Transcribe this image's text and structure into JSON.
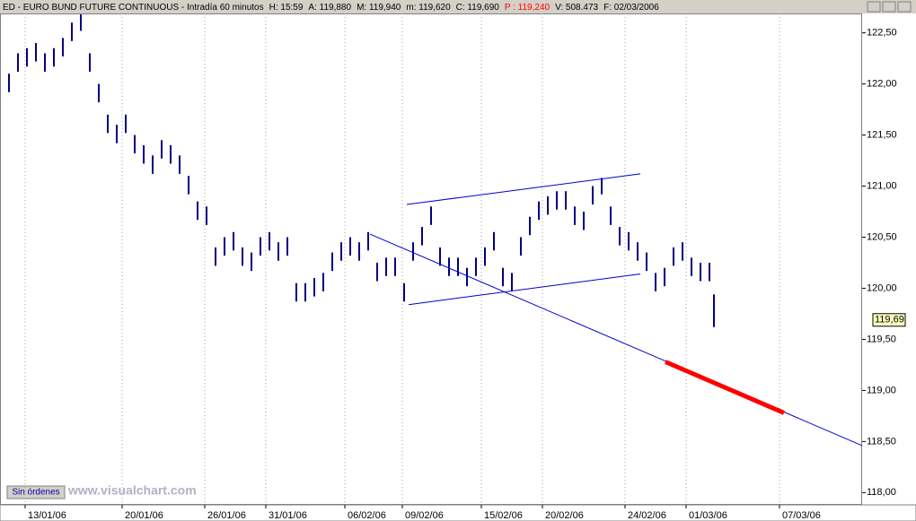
{
  "chart_data": {
    "type": "hilo",
    "title": "ED - EURO BUND FUTURE CONTINUOUS - Intradía 60 minutos",
    "header_fields": [
      {
        "text": "H: 15:59"
      },
      {
        "text": "A: 119,880"
      },
      {
        "text": "M: 119,940"
      },
      {
        "text": "m: 119,620"
      },
      {
        "text": "C: 119,690"
      },
      {
        "text": "P : 119,240",
        "color": "#ff0000"
      },
      {
        "text": "V: 508.473"
      },
      {
        "text": "F: 02/03/2006"
      }
    ],
    "color": "#000080",
    "x": [
      2.5,
      5,
      7.5,
      10,
      12.5,
      15,
      17.5,
      20,
      22.5,
      25,
      27.5,
      30,
      32.5,
      35,
      37.5,
      40,
      42.5,
      45,
      47.5,
      50,
      52.5,
      55,
      57.5,
      60,
      62.5,
      65,
      67.5,
      70,
      72.5,
      75,
      77.5,
      80,
      82.5,
      85,
      87.5,
      90,
      92.5,
      95,
      97.5,
      100,
      102.5,
      105,
      107.5,
      110,
      112.5,
      115,
      117.5,
      120,
      122.5,
      125,
      127.5,
      130,
      132.5,
      135,
      137.5,
      140,
      142.5,
      145,
      147.5,
      150,
      152.5,
      155,
      157.5,
      160,
      162.5,
      165,
      167.5,
      170,
      172.5,
      175,
      177.5,
      180,
      182.5,
      185,
      187.5,
      190,
      192.5,
      195,
      197.5,
      198.75
    ],
    "high": [
      122.1,
      122.3,
      122.35,
      122.4,
      122.3,
      122.35,
      122.45,
      122.6,
      122.68,
      122.3,
      122.0,
      121.7,
      121.6,
      121.7,
      121.5,
      121.4,
      121.3,
      121.45,
      121.4,
      121.3,
      121.1,
      120.85,
      120.8,
      120.4,
      120.5,
      120.55,
      120.4,
      120.35,
      120.5,
      120.55,
      120.45,
      120.5,
      120.05,
      120.05,
      120.1,
      120.15,
      120.35,
      120.45,
      120.5,
      120.45,
      120.55,
      120.25,
      120.3,
      120.3,
      120.05,
      120.45,
      120.6,
      120.8,
      120.4,
      120.3,
      120.3,
      120.2,
      120.3,
      120.4,
      120.55,
      120.2,
      120.15,
      120.5,
      120.7,
      120.85,
      120.9,
      120.95,
      120.95,
      120.8,
      120.75,
      121.0,
      121.08,
      120.8,
      120.6,
      120.55,
      120.45,
      120.35,
      120.15,
      120.2,
      120.4,
      120.45,
      120.3,
      120.25,
      120.25,
      119.94
    ],
    "low": [
      121.92,
      122.12,
      122.17,
      122.22,
      122.12,
      122.17,
      122.27,
      122.42,
      122.52,
      122.12,
      121.82,
      121.52,
      121.42,
      121.52,
      121.32,
      121.22,
      121.12,
      121.27,
      121.22,
      121.12,
      120.92,
      120.67,
      120.62,
      120.22,
      120.32,
      120.37,
      120.22,
      120.17,
      120.32,
      120.37,
      120.27,
      120.32,
      119.87,
      119.87,
      119.92,
      119.97,
      120.17,
      120.27,
      120.32,
      120.27,
      120.37,
      120.07,
      120.12,
      120.12,
      119.87,
      120.27,
      120.42,
      120.62,
      120.22,
      120.12,
      120.12,
      120.02,
      120.12,
      120.22,
      120.37,
      120.02,
      119.97,
      120.32,
      120.52,
      120.67,
      120.72,
      120.77,
      120.77,
      120.62,
      120.57,
      120.82,
      120.92,
      120.62,
      120.42,
      120.37,
      120.27,
      120.17,
      119.97,
      120.02,
      120.22,
      120.27,
      120.12,
      120.07,
      120.07,
      119.62
    ],
    "xlim": [
      0,
      240
    ],
    "xticks": [
      {
        "value": 7,
        "label": "13/01/06"
      },
      {
        "value": 34,
        "label": "20/01/06"
      },
      {
        "value": 57,
        "label": "26/01/06"
      },
      {
        "value": 74,
        "label": "31/01/06"
      },
      {
        "value": 96,
        "label": "06/02/06"
      },
      {
        "value": 112,
        "label": "09/02/06"
      },
      {
        "value": 134,
        "label": "15/02/06"
      },
      {
        "value": 151,
        "label": "20/02/06"
      },
      {
        "value": 174,
        "label": "24/02/06"
      },
      {
        "value": 191,
        "label": "01/03/06"
      },
      {
        "value": 217,
        "label": "07/03/06"
      }
    ],
    "ylim": [
      117.88,
      122.69
    ],
    "yticks": [
      {
        "value": 118,
        "label": "118,00"
      },
      {
        "value": 118.5,
        "label": "118,50"
      },
      {
        "value": 119,
        "label": "119,00"
      },
      {
        "value": 119.5,
        "label": "119,50"
      },
      {
        "value": 120,
        "label": "120,00"
      },
      {
        "value": 120.5,
        "label": "120,50"
      },
      {
        "value": 121,
        "label": "121,00"
      },
      {
        "value": 121.5,
        "label": "121,50"
      },
      {
        "value": 122,
        "label": "122,00"
      },
      {
        "value": 122.5,
        "label": "122,50"
      }
    ],
    "grid": true,
    "trend_lines": [
      {
        "x": [
          103,
          240
        ],
        "y": [
          120.53,
          118.46
        ],
        "color": "#0000cc",
        "width": 1
      },
      {
        "x": [
          113.25,
          178.25
        ],
        "y": [
          120.82,
          121.12
        ],
        "color": "#0000cc",
        "width": 1
      },
      {
        "x": [
          113.75,
          178.25
        ],
        "y": [
          119.84,
          120.14
        ],
        "color": "#0000cc",
        "width": 1
      },
      {
        "x": [
          185.25,
          218.25
        ],
        "y": [
          119.28,
          118.78
        ],
        "color": "#ff0000",
        "width": 5
      }
    ],
    "last_price": {
      "value": 119.69,
      "label": "119,69"
    },
    "watermark": "www.visualchart.com",
    "button": "Sin órdenes"
  }
}
